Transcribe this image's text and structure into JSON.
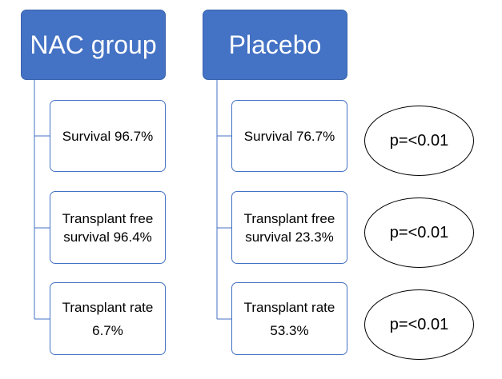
{
  "groups": [
    {
      "title": "NAC group",
      "outcomes": [
        {
          "line1": "Survival 96.7%",
          "line2": ""
        },
        {
          "line1": "Transplant free",
          "line2": "survival 96.4%"
        },
        {
          "line1": "Transplant rate",
          "line2": "6.7%"
        }
      ]
    },
    {
      "title": "Placebo",
      "outcomes": [
        {
          "line1": "Survival 76.7%",
          "line2": ""
        },
        {
          "line1": "Transplant free",
          "line2": "survival 23.3%"
        },
        {
          "line1": "Transplant rate",
          "line2": "53.3%"
        }
      ]
    }
  ],
  "p_values": [
    "p=<0.01",
    "p=<0.01",
    "p=<0.01"
  ],
  "colors": {
    "header_fill": "#4472c4",
    "header_text": "#ffffff",
    "box_border": "#4472c4",
    "connector": "#4472c4",
    "ellipse_border": "#000000"
  }
}
